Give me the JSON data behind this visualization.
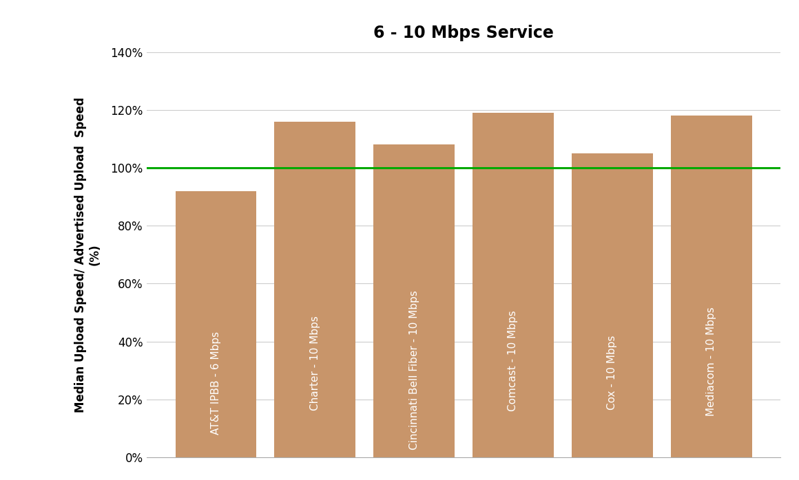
{
  "title": "6 - 10 Mbps Service",
  "ylabel_line1": "Median Upload Speed/ Advertised Upload  Speed",
  "ylabel_line2": "(%)",
  "categories": [
    "AT&T IPBB - 6 Mbps",
    "Charter - 10 Mbps",
    "Cincinnati Bell Fiber - 10 Mbps",
    "Comcast - 10 Mbps",
    "Cox - 10 Mbps",
    "Mediacom - 10 Mbps"
  ],
  "values": [
    92,
    116,
    108,
    119,
    105,
    118
  ],
  "bar_color": "#C8956A",
  "reference_line_y": 100,
  "reference_line_color": "#00AA00",
  "ylim": [
    0,
    140
  ],
  "yticks": [
    0,
    20,
    40,
    60,
    80,
    100,
    120,
    140
  ],
  "ytick_labels": [
    "0%",
    "20%",
    "40%",
    "60%",
    "80%",
    "100%",
    "120%",
    "140%"
  ],
  "title_fontsize": 17,
  "ylabel_fontsize": 12,
  "ytick_fontsize": 12,
  "bar_label_fontsize": 11,
  "bar_label_color": "white",
  "background_color": "#ffffff",
  "grid_color": "#cccccc",
  "bar_width": 0.82
}
